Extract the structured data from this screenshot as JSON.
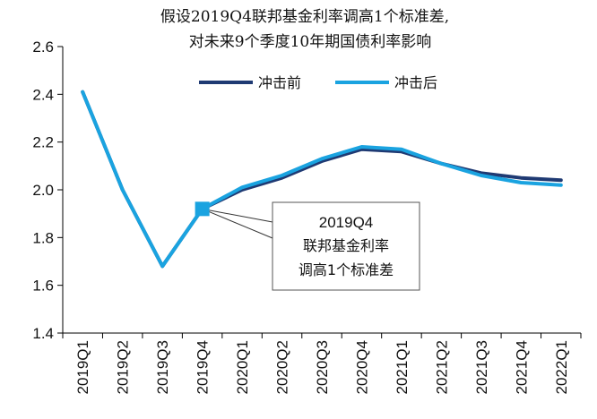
{
  "chart_data": {
    "type": "line",
    "title": "假设2019Q4联邦基金利率调高1个标准差,",
    "subtitle": "对未来9个季度10年期国债利率影响",
    "categories": [
      "2019Q1",
      "2019Q2",
      "2019Q3",
      "2019Q4",
      "2020Q1",
      "2020Q2",
      "2020Q3",
      "2020Q4",
      "2021Q1",
      "2021Q2",
      "2021Q3",
      "2021Q4",
      "2022Q1"
    ],
    "ylim": [
      1.4,
      2.6
    ],
    "yticks": [
      "1.4",
      "1.6",
      "1.8",
      "2.0",
      "2.2",
      "2.4",
      "2.6"
    ],
    "grid": false,
    "legend_position": "top-right",
    "series": [
      {
        "name": "冲击前",
        "color": "#1f3a73",
        "values": [
          2.41,
          2.0,
          1.68,
          1.92,
          2.0,
          2.05,
          2.12,
          2.17,
          2.16,
          2.11,
          2.07,
          2.05,
          2.04
        ]
      },
      {
        "name": "冲击后",
        "color": "#1aa3e0",
        "values": [
          2.41,
          2.0,
          1.68,
          1.92,
          2.01,
          2.06,
          2.13,
          2.18,
          2.17,
          2.11,
          2.06,
          2.03,
          2.02
        ]
      }
    ],
    "annotation": {
      "target_index": 3,
      "title": "2019Q4",
      "lines": [
        "联邦基金利率",
        "调高1个标准差"
      ],
      "marker_color": "#1aa3e0"
    }
  }
}
